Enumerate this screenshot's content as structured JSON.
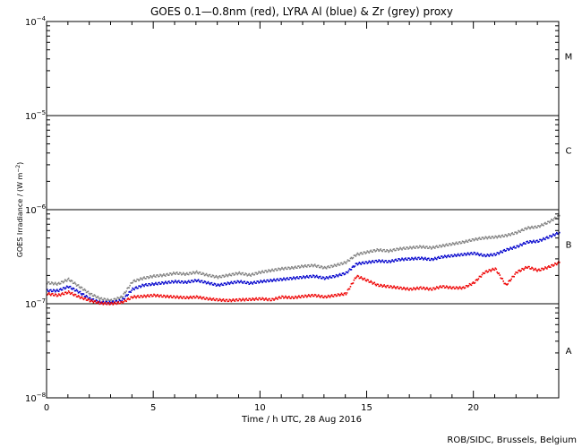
{
  "chart_data": {
    "type": "scatter",
    "title": "GOES 0.1—0.8nm (red), LYRA Al (blue) & Zr (grey) proxy",
    "xlabel": "Time / h UTC, 28 Aug 2016",
    "ylabel": "GOES Irradiance / (W m",
    "ylabel_sup": "−2",
    "ylabel_end": ")",
    "xlim": [
      0,
      24
    ],
    "ylim": [
      1e-08,
      0.0001
    ],
    "yscale": "log",
    "x_ticks": [
      0,
      5,
      10,
      15,
      20
    ],
    "x_tick_labels": [
      "0",
      "5",
      "10",
      "15",
      "20"
    ],
    "y_ticks": [
      {
        "value": 1e-08,
        "base": "10",
        "exp": "−8"
      },
      {
        "value": 1e-07,
        "base": "10",
        "exp": "−7"
      },
      {
        "value": 1e-06,
        "base": "10",
        "exp": "−6"
      },
      {
        "value": 1e-05,
        "base": "10",
        "exp": "−5"
      },
      {
        "value": 0.0001,
        "base": "10",
        "exp": "−4"
      }
    ],
    "class_lines": [
      1e-07,
      1e-06,
      1e-05
    ],
    "flare_classes": [
      {
        "label": "A",
        "value": 3.2e-08
      },
      {
        "label": "B",
        "value": 4.3e-07
      },
      {
        "label": "C",
        "value": 4.3e-06
      },
      {
        "label": "M",
        "value": 4.3e-05
      }
    ],
    "credit": "ROB/SIDC, Brussels, Belgium",
    "series": [
      {
        "name": "Zr (grey)",
        "color": "#808080",
        "x": [
          0,
          0.5,
          1,
          1.5,
          2,
          2.5,
          3,
          3.5,
          4,
          4.5,
          5,
          5.5,
          6,
          6.5,
          7,
          7.5,
          8,
          8.5,
          9,
          9.5,
          10,
          10.5,
          11,
          11.5,
          12,
          12.5,
          13,
          13.5,
          14,
          14.5,
          15,
          15.5,
          16,
          16.5,
          17,
          17.5,
          18,
          18.5,
          19,
          19.5,
          20,
          20.5,
          21,
          21.5,
          22,
          22.5,
          23,
          23.5,
          24
        ],
        "y": [
          1.7e-07,
          1.65e-07,
          1.85e-07,
          1.55e-07,
          1.3e-07,
          1.15e-07,
          1.1e-07,
          1.2e-07,
          1.75e-07,
          1.9e-07,
          2e-07,
          2.05e-07,
          2.15e-07,
          2.1e-07,
          2.2e-07,
          2.05e-07,
          1.95e-07,
          2.05e-07,
          2.15e-07,
          2.05e-07,
          2.2e-07,
          2.3e-07,
          2.4e-07,
          2.45e-07,
          2.55e-07,
          2.6e-07,
          2.45e-07,
          2.6e-07,
          2.8e-07,
          3.4e-07,
          3.6e-07,
          3.8e-07,
          3.7e-07,
          3.9e-07,
          4e-07,
          4.1e-07,
          4e-07,
          4.2e-07,
          4.4e-07,
          4.6e-07,
          4.9e-07,
          5.1e-07,
          5.2e-07,
          5.4e-07,
          5.8e-07,
          6.5e-07,
          6.7e-07,
          7.5e-07,
          8.8e-07
        ]
      },
      {
        "name": "Al (blue)",
        "color": "#0000cc",
        "x": [
          0,
          0.5,
          1,
          1.5,
          2,
          2.5,
          3,
          3.5,
          4,
          4.5,
          5,
          5.5,
          6,
          6.5,
          7,
          7.5,
          8,
          8.5,
          9,
          9.5,
          10,
          10.5,
          11,
          11.5,
          12,
          12.5,
          13,
          13.5,
          14,
          14.5,
          15,
          15.5,
          16,
          16.5,
          17,
          17.5,
          18,
          18.5,
          19,
          19.5,
          20,
          20.5,
          21,
          21.5,
          22,
          22.5,
          23,
          23.5,
          24
        ],
        "y": [
          1.4e-07,
          1.4e-07,
          1.55e-07,
          1.35e-07,
          1.15e-07,
          1.05e-07,
          1.05e-07,
          1.1e-07,
          1.45e-07,
          1.6e-07,
          1.65e-07,
          1.7e-07,
          1.75e-07,
          1.72e-07,
          1.8e-07,
          1.7e-07,
          1.6e-07,
          1.68e-07,
          1.75e-07,
          1.68e-07,
          1.75e-07,
          1.8e-07,
          1.85e-07,
          1.9e-07,
          1.95e-07,
          2e-07,
          1.9e-07,
          2e-07,
          2.15e-07,
          2.7e-07,
          2.8e-07,
          2.9e-07,
          2.85e-07,
          3e-07,
          3.05e-07,
          3.1e-07,
          3e-07,
          3.2e-07,
          3.3e-07,
          3.4e-07,
          3.5e-07,
          3.3e-07,
          3.4e-07,
          3.8e-07,
          4.1e-07,
          4.6e-07,
          4.7e-07,
          5.2e-07,
          5.8e-07
        ]
      },
      {
        "name": "GOES 0.1—0.8nm (red)",
        "color": "#ee0000",
        "x": [
          0,
          0.5,
          1,
          1.5,
          2,
          2.5,
          3,
          3.5,
          4,
          4.5,
          5,
          5.5,
          6,
          6.5,
          7,
          7.5,
          8,
          8.5,
          9,
          9.5,
          10,
          10.5,
          11,
          11.5,
          12,
          12.5,
          13,
          13.5,
          14,
          14.5,
          15,
          15.5,
          16,
          16.5,
          17,
          17.5,
          18,
          18.5,
          19,
          19.5,
          20,
          20.5,
          21,
          21.5,
          22,
          22.5,
          23,
          23.5,
          24
        ],
        "y": [
          1.3e-07,
          1.25e-07,
          1.35e-07,
          1.2e-07,
          1.1e-07,
          1.03e-07,
          1.02e-07,
          1.05e-07,
          1.2e-07,
          1.22e-07,
          1.25e-07,
          1.22e-07,
          1.2e-07,
          1.18e-07,
          1.2e-07,
          1.15e-07,
          1.12e-07,
          1.1e-07,
          1.12e-07,
          1.13e-07,
          1.15e-07,
          1.12e-07,
          1.2e-07,
          1.18e-07,
          1.22e-07,
          1.25e-07,
          1.2e-07,
          1.25e-07,
          1.3e-07,
          2e-07,
          1.8e-07,
          1.6e-07,
          1.55e-07,
          1.5e-07,
          1.45e-07,
          1.5e-07,
          1.45e-07,
          1.55e-07,
          1.5e-07,
          1.5e-07,
          1.7e-07,
          2.2e-07,
          2.4e-07,
          1.6e-07,
          2.2e-07,
          2.5e-07,
          2.3e-07,
          2.5e-07,
          2.8e-07
        ]
      }
    ]
  }
}
